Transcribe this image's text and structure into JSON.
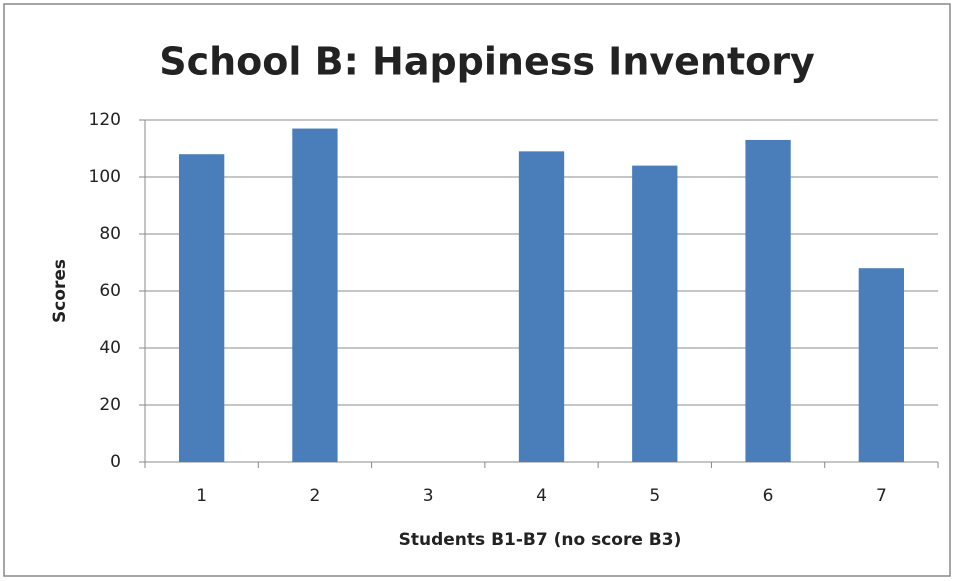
{
  "chart_data": {
    "type": "bar",
    "title": "School B: Happiness Inventory",
    "x_label": "Students B1-B7 (no score B3)",
    "y_label": "Scores",
    "categories": [
      "1",
      "2",
      "3",
      "4",
      "5",
      "6",
      "7"
    ],
    "values": [
      108,
      117,
      null,
      109,
      104,
      113,
      68
    ],
    "color": "#4a7ebb",
    "ylim": [
      0,
      120
    ],
    "yticks": [
      0,
      20,
      40,
      60,
      80,
      100,
      120
    ],
    "grid": true
  }
}
